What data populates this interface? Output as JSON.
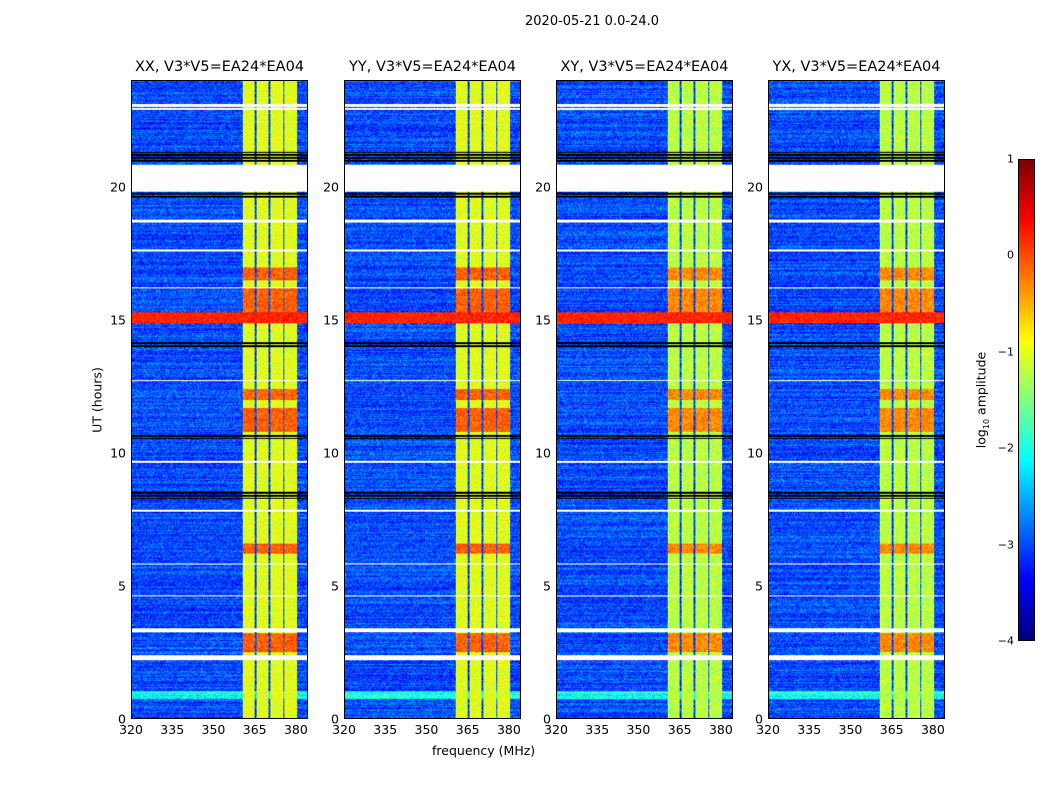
{
  "chart_data": {
    "type": "heatmap",
    "title": "2020-05-21 0.0-24.0",
    "xlabel": "frequency (MHz)",
    "ylabel": "UT (hours)",
    "xlim": [
      320,
      384.4
    ],
    "ylim": [
      0,
      24
    ],
    "xticks": [
      "320",
      "335",
      "350",
      "365",
      "380"
    ],
    "xtick_values": [
      320,
      335,
      350,
      365,
      380
    ],
    "yticks": [
      "0",
      "5",
      "10",
      "15",
      "20"
    ],
    "ytick_values": [
      0,
      5,
      10,
      15,
      20
    ],
    "panels": [
      {
        "title": "XX, V3*V5=EA24*EA04"
      },
      {
        "title": "YY, V3*V5=EA24*EA04"
      },
      {
        "title": "XY, V3*V5=EA24*EA04"
      },
      {
        "title": "YX, V3*V5=EA24*EA04"
      }
    ],
    "colorbar": {
      "label": "log10 amplitude",
      "label_main": "log",
      "label_sub": "10",
      "label_rest": " amplitude",
      "colormap": "jet",
      "range": [
        -4,
        1
      ],
      "ticks": [
        "1",
        "0",
        "−1",
        "−2",
        "−3",
        "−4"
      ],
      "tick_values": [
        1,
        0,
        -1,
        -2,
        -3,
        -4
      ]
    },
    "background_log_amp": -3.0,
    "rfi_bands_mhz": [
      [
        360.7,
        365.0
      ],
      [
        365.6,
        370.2
      ],
      [
        370.8,
        375.4
      ],
      [
        376.0,
        380.4
      ]
    ],
    "rfi_log_amp": -1.0,
    "strong_rfi_ut": [
      [
        10.8,
        11.7
      ],
      [
        12.0,
        12.4
      ],
      [
        15.3,
        16.2
      ],
      [
        16.5,
        17.0
      ],
      [
        2.5,
        3.2
      ],
      [
        6.2,
        6.6
      ]
    ],
    "strong_broadband_ut": [
      [
        14.9,
        15.3
      ]
    ],
    "flagged_ut": [
      [
        23.05,
        23.15
      ],
      [
        22.93,
        23.0
      ],
      [
        20.7,
        20.86
      ],
      [
        19.86,
        20.7
      ],
      [
        2.2,
        2.4
      ],
      [
        3.26,
        3.4
      ],
      [
        7.8,
        7.86
      ],
      [
        9.65,
        9.72
      ],
      [
        18.7,
        18.78
      ],
      [
        17.6,
        17.66
      ],
      [
        12.7,
        12.76
      ],
      [
        16.2,
        16.26
      ],
      [
        5.8,
        5.85
      ],
      [
        4.6,
        4.64
      ]
    ],
    "blank_ut": [
      [
        20.98,
        21.35
      ],
      [
        19.6,
        19.8
      ],
      [
        14.0,
        14.2
      ],
      [
        10.55,
        10.72
      ],
      [
        8.3,
        8.6
      ]
    ]
  }
}
